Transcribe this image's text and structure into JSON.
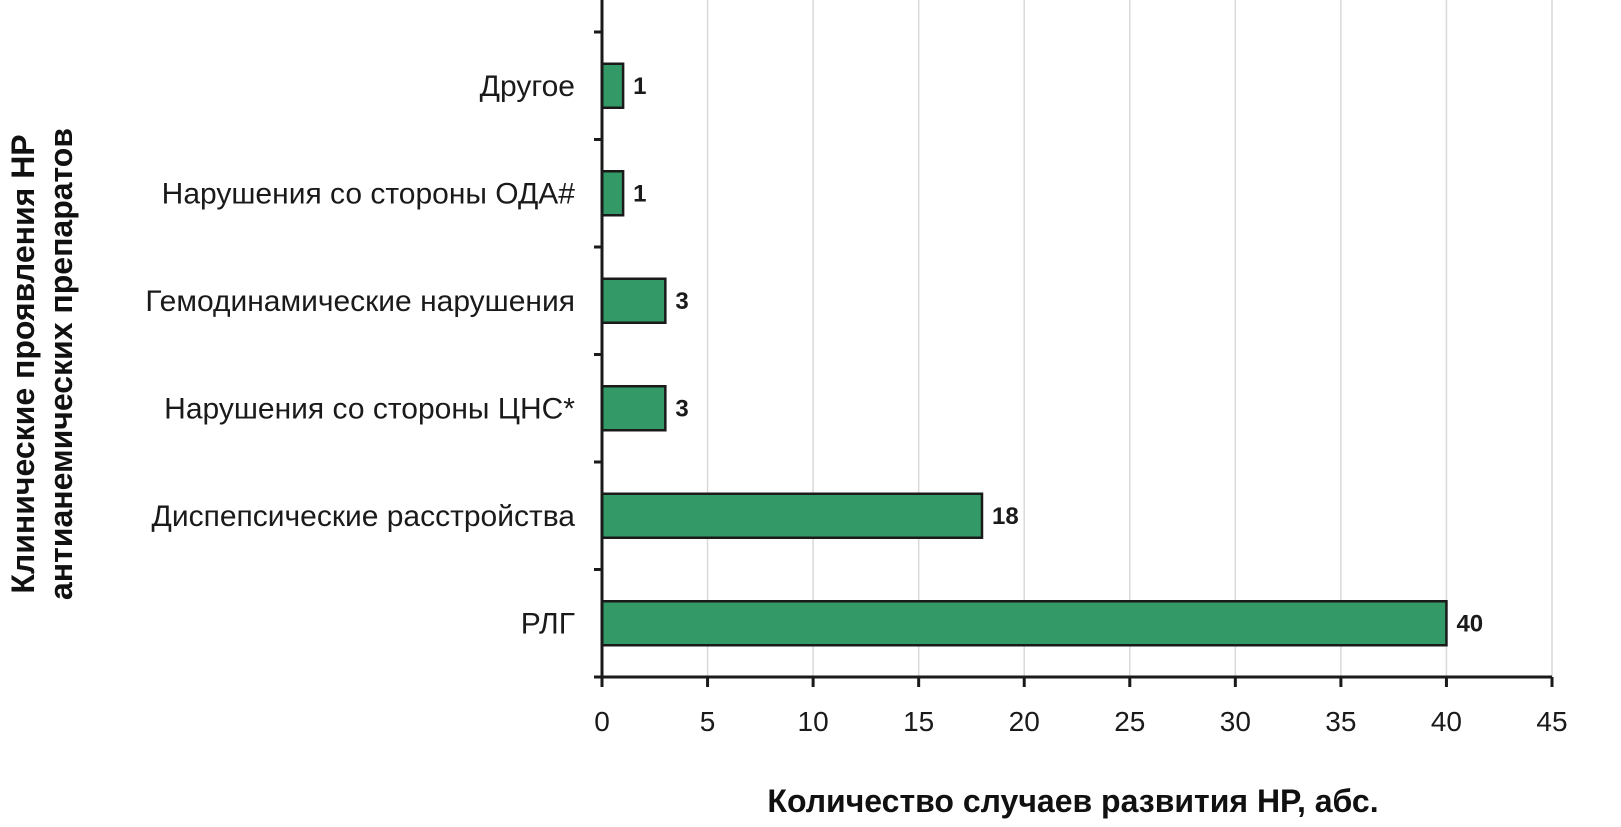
{
  "chart_data": {
    "type": "bar",
    "orientation": "horizontal",
    "categories": [
      "Другое",
      "Нарушения со стороны ОДА#",
      "Гемодинамические нарушения",
      "Нарушения со стороны ЦНС*",
      "Диспепсические расстройства",
      "РЛГ"
    ],
    "values": [
      1,
      1,
      3,
      3,
      18,
      40
    ],
    "value_labels": [
      "1",
      "1",
      "3",
      "3",
      "18",
      "40"
    ],
    "xlabel": "Количество случаев развития НР, абс.",
    "ylabel_lines": [
      "Клинические проявления НР",
      "антианемических препаратов"
    ],
    "xlim": [
      0,
      45
    ],
    "xticks": [
      "0",
      "5",
      "10",
      "15",
      "20",
      "25",
      "30",
      "35",
      "40",
      "45"
    ],
    "tick_values": [
      0,
      5,
      10,
      15,
      20,
      25,
      30,
      35,
      40,
      45
    ],
    "grid": "vertical",
    "legend": "none",
    "colors": {
      "bar": "#339966",
      "bar_stroke": "#1a1a1a",
      "grid": "#d9d9d9",
      "axis": "#1a1a1a"
    }
  }
}
